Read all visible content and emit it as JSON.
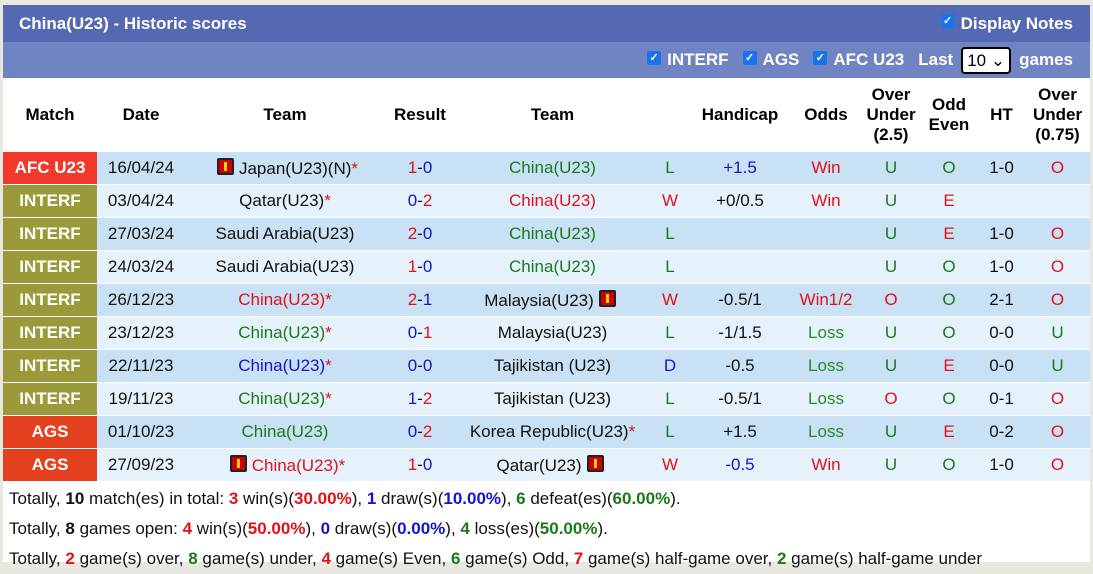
{
  "title": "China(U23) - Historic scores",
  "display_notes": "Display Notes",
  "filters": [
    "INTERF",
    "AGS",
    "AFC U23"
  ],
  "last_label": "Last",
  "last_value": "10",
  "games_label": "games",
  "headers": [
    "Match",
    "Date",
    "Team",
    "Result",
    "Team",
    "",
    "Handicap",
    "Odds",
    "Over Under (2.5)",
    "Odd Even",
    "HT",
    "Over Under (0.75)"
  ],
  "match_colors": {
    "AFC U23": "#f0392b",
    "INTERF": "#9b9a3a",
    "AGS": "#e2401e"
  },
  "rows": [
    {
      "match": "AFC U23",
      "date": "16/04/24",
      "home": "Japan(U23)(N)",
      "home_star": true,
      "home_flag": true,
      "home_color": "black",
      "hs": "1",
      "as": "0",
      "hsc": "red",
      "asc": "blue",
      "away": "China(U23)",
      "away_color": "green",
      "away_star": false,
      "away_flag": false,
      "wl": "L",
      "hc": "+1.5",
      "hcc": "blue",
      "odds": "Win",
      "ou": "U",
      "oe": "O",
      "ht": "1-0",
      "ou2": "O"
    },
    {
      "match": "INTERF",
      "date": "03/04/24",
      "home": "Qatar(U23)",
      "home_star": true,
      "home_flag": false,
      "home_color": "black",
      "hs": "0",
      "as": "2",
      "hsc": "blue",
      "asc": "red",
      "away": "China(U23)",
      "away_color": "red",
      "away_star": false,
      "away_flag": false,
      "wl": "W",
      "hc": "+0/0.5",
      "hcc": "black",
      "odds": "Win",
      "ou": "U",
      "oe": "E",
      "ht": "",
      "ou2": ""
    },
    {
      "match": "INTERF",
      "date": "27/03/24",
      "home": "Saudi Arabia(U23)",
      "home_star": false,
      "home_flag": false,
      "home_color": "black",
      "hs": "2",
      "as": "0",
      "hsc": "red",
      "asc": "blue",
      "away": "China(U23)",
      "away_color": "green",
      "away_star": false,
      "away_flag": false,
      "wl": "L",
      "hc": "",
      "hcc": "black",
      "odds": "",
      "ou": "U",
      "oe": "E",
      "ht": "1-0",
      "ou2": "O"
    },
    {
      "match": "INTERF",
      "date": "24/03/24",
      "home": "Saudi Arabia(U23)",
      "home_star": false,
      "home_flag": false,
      "home_color": "black",
      "hs": "1",
      "as": "0",
      "hsc": "red",
      "asc": "blue",
      "away": "China(U23)",
      "away_color": "green",
      "away_star": false,
      "away_flag": false,
      "wl": "L",
      "hc": "",
      "hcc": "black",
      "odds": "",
      "ou": "U",
      "oe": "O",
      "ht": "1-0",
      "ou2": "O"
    },
    {
      "match": "INTERF",
      "date": "26/12/23",
      "home": "China(U23)",
      "home_star": true,
      "home_flag": false,
      "home_color": "red",
      "hs": "2",
      "as": "1",
      "hsc": "red",
      "asc": "blue",
      "away": "Malaysia(U23)",
      "away_color": "black",
      "away_star": false,
      "away_flag": true,
      "wl": "W",
      "hc": "-0.5/1",
      "hcc": "black",
      "odds": "Win1/2",
      "ou": "O",
      "oe": "O",
      "ht": "2-1",
      "ou2": "O"
    },
    {
      "match": "INTERF",
      "date": "23/12/23",
      "home": "China(U23)",
      "home_star": true,
      "home_flag": false,
      "home_color": "green",
      "hs": "0",
      "as": "1",
      "hsc": "blue",
      "asc": "red",
      "away": "Malaysia(U23)",
      "away_color": "black",
      "away_star": false,
      "away_flag": false,
      "wl": "L",
      "hc": "-1/1.5",
      "hcc": "black",
      "odds": "Loss",
      "ou": "U",
      "oe": "O",
      "ht": "0-0",
      "ou2": "U"
    },
    {
      "match": "INTERF",
      "date": "22/11/23",
      "home": "China(U23)",
      "home_star": true,
      "home_flag": false,
      "home_color": "blue",
      "hs": "0",
      "as": "0",
      "hsc": "blue",
      "asc": "blue",
      "away": "Tajikistan (U23)",
      "away_color": "black",
      "away_star": false,
      "away_flag": false,
      "wl": "D",
      "hc": "-0.5",
      "hcc": "black",
      "odds": "Loss",
      "ou": "U",
      "oe": "E",
      "ht": "0-0",
      "ou2": "U"
    },
    {
      "match": "INTERF",
      "date": "19/11/23",
      "home": "China(U23)",
      "home_star": true,
      "home_flag": false,
      "home_color": "green",
      "hs": "1",
      "as": "2",
      "hsc": "blue",
      "asc": "red",
      "away": "Tajikistan (U23)",
      "away_color": "black",
      "away_star": false,
      "away_flag": false,
      "wl": "L",
      "hc": "-0.5/1",
      "hcc": "black",
      "odds": "Loss",
      "ou": "O",
      "oe": "O",
      "ht": "0-1",
      "ou2": "O"
    },
    {
      "match": "AGS",
      "date": "01/10/23",
      "home": "China(U23)",
      "home_star": false,
      "home_flag": false,
      "home_color": "green",
      "hs": "0",
      "as": "2",
      "hsc": "blue",
      "asc": "red",
      "away": "Korea Republic(U23)",
      "away_color": "black",
      "away_star": true,
      "away_flag": false,
      "wl": "L",
      "hc": "+1.5",
      "hcc": "black",
      "odds": "Loss",
      "ou": "U",
      "oe": "E",
      "ht": "0-2",
      "ou2": "O"
    },
    {
      "match": "AGS",
      "date": "27/09/23",
      "home": "China(U23)",
      "home_star": true,
      "home_flag": true,
      "home_color": "red",
      "hs": "1",
      "as": "0",
      "hsc": "red",
      "asc": "blue",
      "away": "Qatar(U23)",
      "away_color": "black",
      "away_star": false,
      "away_flag": true,
      "wl": "W",
      "hc": "-0.5",
      "hcc": "blue",
      "odds": "Win",
      "ou": "U",
      "oe": "O",
      "ht": "1-0",
      "ou2": "O"
    }
  ],
  "summary": [
    [
      [
        "Totally, ",
        "black",
        0
      ],
      [
        "10",
        "black",
        1
      ],
      [
        " match(es) in total: ",
        "black",
        0
      ],
      [
        "3",
        "red",
        0
      ],
      [
        " win(s)(",
        "black",
        0
      ],
      [
        "30.00%",
        "red",
        0
      ],
      [
        "), ",
        "black",
        0
      ],
      [
        "1",
        "blue",
        0
      ],
      [
        " draw(s)(",
        "black",
        0
      ],
      [
        "10.00%",
        "blue",
        0
      ],
      [
        "), ",
        "black",
        0
      ],
      [
        "6",
        "green",
        0
      ],
      [
        " defeat(es)(",
        "black",
        0
      ],
      [
        "60.00%",
        "green",
        0
      ],
      [
        ").",
        "black",
        0
      ]
    ],
    [
      [
        "Totally, ",
        "black",
        0
      ],
      [
        "8",
        "black",
        1
      ],
      [
        " games open: ",
        "black",
        0
      ],
      [
        "4",
        "red",
        0
      ],
      [
        " win(s)(",
        "black",
        0
      ],
      [
        "50.00%",
        "red",
        0
      ],
      [
        "), ",
        "black",
        0
      ],
      [
        "0",
        "blue",
        0
      ],
      [
        " draw(s)(",
        "black",
        0
      ],
      [
        "0.00%",
        "blue",
        0
      ],
      [
        "), ",
        "black",
        0
      ],
      [
        "4",
        "green",
        0
      ],
      [
        " loss(es)(",
        "black",
        0
      ],
      [
        "50.00%",
        "green",
        0
      ],
      [
        ").",
        "black",
        0
      ]
    ],
    [
      [
        "Totally, ",
        "black",
        0
      ],
      [
        "2",
        "red",
        0
      ],
      [
        " game(s) over, ",
        "black",
        0
      ],
      [
        "8",
        "green",
        0
      ],
      [
        " game(s) under, ",
        "black",
        0
      ],
      [
        "4",
        "red",
        0
      ],
      [
        " game(s) Even, ",
        "black",
        0
      ],
      [
        "6",
        "green",
        0
      ],
      [
        " game(s) Odd, ",
        "black",
        0
      ],
      [
        "7",
        "red",
        0
      ],
      [
        " game(s) half-game over, ",
        "black",
        0
      ],
      [
        "2",
        "green",
        0
      ],
      [
        " game(s) half-game under",
        "black",
        0
      ]
    ]
  ]
}
